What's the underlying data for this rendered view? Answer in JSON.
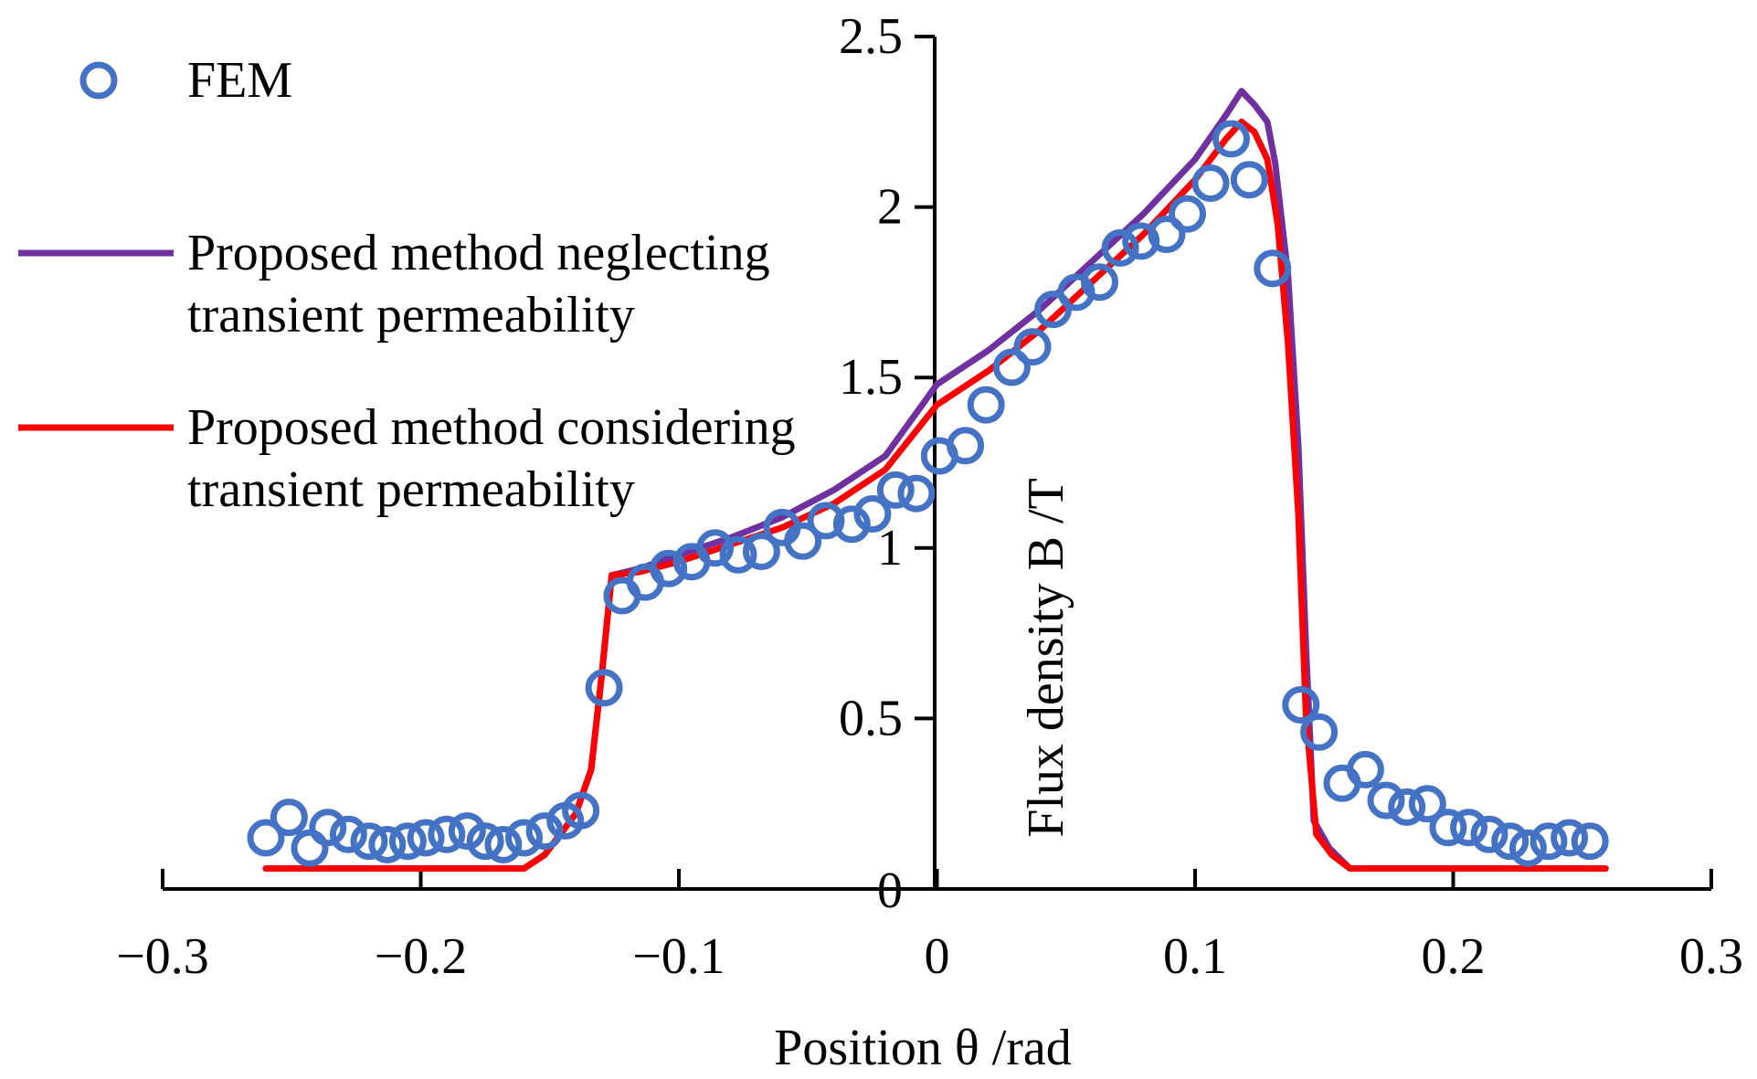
{
  "chart_data": {
    "type": "line",
    "xlabel": "Position θ /rad",
    "ylabel": "Flux density B /T",
    "xlim": [
      -0.3,
      0.3
    ],
    "ylim": [
      0,
      2.5
    ],
    "x_ticks": [
      "−0.3",
      "−0.2",
      "−0.1",
      "0",
      "0.1",
      "0.2",
      "0.3"
    ],
    "x_tick_values": [
      -0.3,
      -0.2,
      -0.1,
      0,
      0.1,
      0.2,
      0.3
    ],
    "y_ticks": [
      "0",
      "0.5",
      "1",
      "1.5",
      "2",
      "2.5"
    ],
    "y_tick_values": [
      0,
      0.5,
      1,
      1.5,
      2,
      2.5
    ],
    "grid": false,
    "legend_position": "top-left",
    "series": [
      {
        "name": "FEM",
        "style": "markers",
        "color": "#4472C4",
        "points": [
          [
            -0.26,
            0.15
          ],
          [
            -0.251,
            0.21
          ],
          [
            -0.243,
            0.12
          ],
          [
            -0.236,
            0.18
          ],
          [
            -0.228,
            0.16
          ],
          [
            -0.22,
            0.14
          ],
          [
            -0.213,
            0.13
          ],
          [
            -0.205,
            0.14
          ],
          [
            -0.198,
            0.15
          ],
          [
            -0.19,
            0.16
          ],
          [
            -0.182,
            0.17
          ],
          [
            -0.175,
            0.14
          ],
          [
            -0.168,
            0.13
          ],
          [
            -0.16,
            0.15
          ],
          [
            -0.152,
            0.17
          ],
          [
            -0.144,
            0.2
          ],
          [
            -0.138,
            0.23
          ],
          [
            -0.129,
            0.59
          ],
          [
            -0.122,
            0.86
          ],
          [
            -0.113,
            0.9
          ],
          [
            -0.104,
            0.94
          ],
          [
            -0.095,
            0.96
          ],
          [
            -0.086,
            1.0
          ],
          [
            -0.077,
            0.98
          ],
          [
            -0.068,
            0.99
          ],
          [
            -0.06,
            1.06
          ],
          [
            -0.052,
            1.02
          ],
          [
            -0.043,
            1.08
          ],
          [
            -0.033,
            1.07
          ],
          [
            -0.025,
            1.1
          ],
          [
            -0.016,
            1.17
          ],
          [
            -0.008,
            1.16
          ],
          [
            0.001,
            1.27
          ],
          [
            0.011,
            1.3
          ],
          [
            0.019,
            1.42
          ],
          [
            0.029,
            1.53
          ],
          [
            0.037,
            1.59
          ],
          [
            0.045,
            1.7
          ],
          [
            0.054,
            1.75
          ],
          [
            0.063,
            1.78
          ],
          [
            0.071,
            1.88
          ],
          [
            0.079,
            1.9
          ],
          [
            0.089,
            1.92
          ],
          [
            0.097,
            1.98
          ],
          [
            0.106,
            2.07
          ],
          [
            0.114,
            2.2
          ],
          [
            0.121,
            2.08
          ],
          [
            0.13,
            1.82
          ],
          [
            0.141,
            0.54
          ],
          [
            0.148,
            0.46
          ],
          [
            0.157,
            0.31
          ],
          [
            0.166,
            0.35
          ],
          [
            0.174,
            0.26
          ],
          [
            0.182,
            0.24
          ],
          [
            0.19,
            0.25
          ],
          [
            0.198,
            0.18
          ],
          [
            0.206,
            0.18
          ],
          [
            0.214,
            0.16
          ],
          [
            0.222,
            0.14
          ],
          [
            0.229,
            0.12
          ],
          [
            0.237,
            0.14
          ],
          [
            0.245,
            0.15
          ],
          [
            0.253,
            0.14
          ]
        ]
      },
      {
        "name": "Proposed method neglecting transient permeability",
        "style": "line",
        "color": "#7030A0",
        "points": [
          [
            -0.26,
            0.06
          ],
          [
            -0.16,
            0.06
          ],
          [
            -0.152,
            0.1
          ],
          [
            -0.145,
            0.17
          ],
          [
            -0.14,
            0.22
          ],
          [
            -0.134,
            0.35
          ],
          [
            -0.13,
            0.62
          ],
          [
            -0.126,
            0.92
          ],
          [
            -0.115,
            0.94
          ],
          [
            -0.1,
            0.98
          ],
          [
            -0.08,
            1.03
          ],
          [
            -0.06,
            1.09
          ],
          [
            -0.04,
            1.17
          ],
          [
            -0.02,
            1.27
          ],
          [
            0.0,
            1.48
          ],
          [
            0.02,
            1.58
          ],
          [
            0.04,
            1.7
          ],
          [
            0.06,
            1.84
          ],
          [
            0.08,
            1.98
          ],
          [
            0.1,
            2.14
          ],
          [
            0.112,
            2.27
          ],
          [
            0.118,
            2.34
          ],
          [
            0.123,
            2.3
          ],
          [
            0.128,
            2.25
          ],
          [
            0.131,
            2.13
          ],
          [
            0.136,
            1.8
          ],
          [
            0.14,
            1.3
          ],
          [
            0.143,
            0.7
          ],
          [
            0.146,
            0.2
          ],
          [
            0.152,
            0.12
          ],
          [
            0.16,
            0.06
          ],
          [
            0.259,
            0.06
          ]
        ]
      },
      {
        "name": "Proposed method considering transient permeability",
        "style": "line",
        "color": "#FF0000",
        "points": [
          [
            -0.26,
            0.06
          ],
          [
            -0.16,
            0.06
          ],
          [
            -0.152,
            0.1
          ],
          [
            -0.145,
            0.17
          ],
          [
            -0.14,
            0.22
          ],
          [
            -0.134,
            0.35
          ],
          [
            -0.13,
            0.62
          ],
          [
            -0.126,
            0.92
          ],
          [
            -0.115,
            0.93
          ],
          [
            -0.1,
            0.96
          ],
          [
            -0.08,
            1.01
          ],
          [
            -0.06,
            1.06
          ],
          [
            -0.04,
            1.13
          ],
          [
            -0.02,
            1.23
          ],
          [
            0.0,
            1.42
          ],
          [
            0.02,
            1.52
          ],
          [
            0.04,
            1.64
          ],
          [
            0.06,
            1.78
          ],
          [
            0.08,
            1.92
          ],
          [
            0.1,
            2.08
          ],
          [
            0.112,
            2.2
          ],
          [
            0.118,
            2.25
          ],
          [
            0.123,
            2.22
          ],
          [
            0.128,
            2.14
          ],
          [
            0.132,
            1.95
          ],
          [
            0.136,
            1.6
          ],
          [
            0.14,
            1.1
          ],
          [
            0.143,
            0.5
          ],
          [
            0.147,
            0.16
          ],
          [
            0.153,
            0.1
          ],
          [
            0.16,
            0.06
          ],
          [
            0.259,
            0.06
          ]
        ]
      }
    ]
  }
}
